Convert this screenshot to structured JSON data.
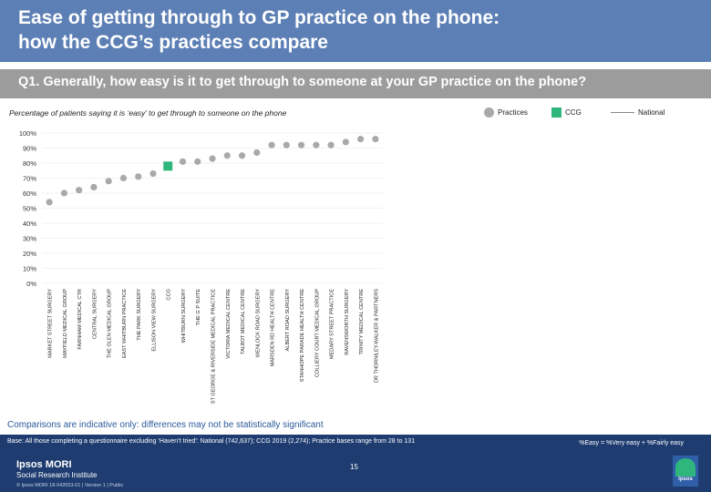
{
  "header": {
    "title_line1": "Ease of getting through to GP practice on the phone:",
    "title_line2": "how the CCG’s practices compare"
  },
  "question": "Q1. Generally, how easy is it to get through to someone at your GP practice on the phone?",
  "subtitle": "Percentage of patients saying it is ‘easy’ to get through to someone on the phone",
  "legend": {
    "practices": "Practices",
    "ccg": "CCG",
    "national": "National"
  },
  "note": "Comparisons are indicative only: differences may not be statistically significant",
  "footer": {
    "base": "Base: All those completing a questionnaire excluding ‘Haven’t tried’: National (742,637); CCG 2019 (2,274); Practice bases range from 28 to 131",
    "easy_definition": "%Easy = %Very easy + %Fairly easy",
    "logo_line1": "Ipsos MORI",
    "logo_line2": "Social Research Institute",
    "copyright": "© Ipsos MORI     18-042653-01 | Version 1 | Public",
    "page_number": "15",
    "badge_text": "Ipsos"
  },
  "colors": {
    "practice": "#a9a9a9",
    "ccg": "#2eb67d",
    "national": "#888888",
    "header": "#5c7fb5",
    "question_bar": "#9c9c9c",
    "footer": "#1e3c70"
  },
  "chart_data": {
    "type": "scatter",
    "ylim": [
      0,
      100
    ],
    "yticks": [
      "0%",
      "10%",
      "20%",
      "30%",
      "40%",
      "50%",
      "60%",
      "70%",
      "80%",
      "90%",
      "100%"
    ],
    "categories": [
      "MARKET STREET SURGERY",
      "MAYFIELD MEDICAL GROUP",
      "FARNHAM MEDICAL CTR",
      "CENTRAL SURGERY",
      "THE GLEN MEDICAL GROUP",
      "EAST WHITBURN PRACTICE",
      "THE PARK SURGERY",
      "ELLISON VIEW SURGERY",
      "CCG",
      "WHITBURN SURGERY",
      "THE G P SUITE",
      "ST GEORGE & RIVERSIDE MEDICAL PRACTICE",
      "VICTORIA MEDICAL CENTRE",
      "TALBOT MEDICAL CENTRE",
      "WENLOCK ROAD SURGERY",
      "MARSDEN RD HEALTH CENTRE",
      "ALBERT ROAD SURGERY",
      "STANHOPE PARADE HEALTH CENTRE",
      "COLLIERY COURT MEDICAL GROUP",
      "MEDARY STREET PRACTICE",
      "RAVENSWORTH SURGERY",
      "TRINITY MEDICAL CENTRE",
      "DR THORNILEY-WALKER & PARTNERS"
    ],
    "values": [
      54,
      60,
      62,
      64,
      68,
      70,
      71,
      73,
      78,
      81,
      81,
      83,
      85,
      85,
      87,
      92,
      92,
      92,
      92,
      92,
      94,
      96,
      96
    ],
    "ccg_index": 8
  }
}
